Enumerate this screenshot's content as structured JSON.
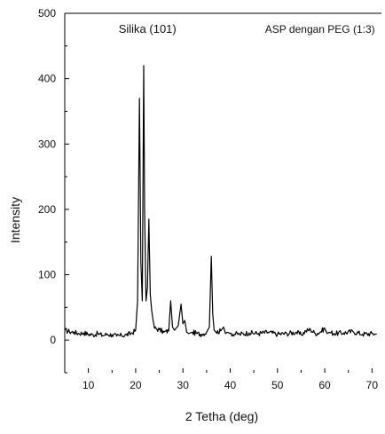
{
  "chart_data": {
    "type": "line",
    "title": "",
    "xlabel": "2 Tetha (deg)",
    "ylabel": "Intensity",
    "xlim": [
      5,
      72
    ],
    "ylim": [
      -50,
      500
    ],
    "x_ticks": [
      10,
      20,
      30,
      40,
      50,
      60,
      70
    ],
    "y_ticks": [
      0,
      100,
      200,
      300,
      400,
      500
    ],
    "grid": false,
    "legend": "none",
    "annotations": [
      {
        "text": "Silika (101)",
        "x": 22.5,
        "y": 470
      },
      {
        "text": "ASP dengan PEG (1:3)",
        "x": 59,
        "y": 470
      }
    ],
    "series": [
      {
        "color": "#000000",
        "x": [
          5,
          6,
          7,
          8,
          9,
          10,
          11,
          12,
          13,
          14,
          15,
          16,
          17,
          18,
          19,
          20,
          20.4,
          20.8,
          21.1,
          21.4,
          21.7,
          21.9,
          22.2,
          22.5,
          22.8,
          23.1,
          23.4,
          23.7,
          24,
          25,
          26,
          27,
          27.4,
          27.8,
          28.2,
          29,
          29.6,
          30,
          30.4,
          30.8,
          31.2,
          32,
          33,
          34,
          35,
          35.6,
          36,
          36.3,
          36.6,
          37,
          38,
          38.6,
          39,
          39.4,
          40,
          42,
          44,
          46,
          48,
          50,
          52,
          54,
          55,
          56,
          57,
          58,
          59,
          60,
          60.5,
          61,
          62,
          64,
          66,
          68,
          70,
          71
        ],
        "y": [
          15,
          13,
          12,
          10,
          11,
          9,
          8,
          10,
          7,
          9,
          8,
          6,
          7,
          8,
          10,
          15,
          60,
          370,
          120,
          60,
          420,
          200,
          60,
          80,
          185,
          70,
          45,
          30,
          18,
          16,
          12,
          14,
          60,
          20,
          15,
          22,
          55,
          25,
          30,
          12,
          10,
          12,
          10,
          9,
          12,
          20,
          128,
          40,
          15,
          12,
          14,
          20,
          10,
          12,
          10,
          9,
          11,
          10,
          12,
          9,
          10,
          12,
          8,
          14,
          16,
          10,
          12,
          18,
          10,
          12,
          10,
          11,
          13,
          9,
          10,
          9
        ]
      }
    ]
  }
}
